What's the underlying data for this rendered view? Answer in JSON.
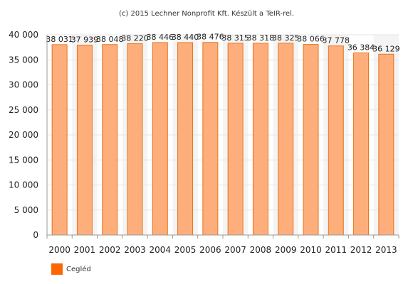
{
  "credit": "(c) 2015 Lechner Nonprofit Kft. Készült a TeIR-rel.",
  "chart_data": {
    "type": "bar",
    "title": "",
    "xlabel": "",
    "ylabel": "",
    "categories": [
      "2000",
      "2001",
      "2002",
      "2003",
      "2004",
      "2005",
      "2006",
      "2007",
      "2008",
      "2009",
      "2010",
      "2011",
      "2012",
      "2013"
    ],
    "series": [
      {
        "name": "Cegléd",
        "values": [
          38031,
          37939,
          38048,
          38220,
          38446,
          38440,
          38476,
          38315,
          38318,
          38325,
          38066,
          37778,
          36384,
          36129
        ],
        "value_labels": [
          "38 031",
          "37 939",
          "38 048",
          "38 220",
          "38 446",
          "38 440",
          "38 476",
          "38 315",
          "38 318",
          "38 325",
          "38 066",
          "37 778",
          "36 384",
          "36 129"
        ],
        "color": "#fdae7b",
        "stroke": "#e8731e"
      }
    ],
    "ylim": [
      0,
      40000
    ],
    "yticks": [
      0,
      5000,
      10000,
      15000,
      20000,
      25000,
      30000,
      35000,
      40000
    ],
    "ytick_labels": [
      "0",
      "5 000",
      "10 000",
      "15 000",
      "20 000",
      "25 000",
      "30 000",
      "35 000",
      "40 000"
    ],
    "grid": true,
    "legend_position": "bottom-left",
    "legend_swatch_color": "#ff6600"
  }
}
